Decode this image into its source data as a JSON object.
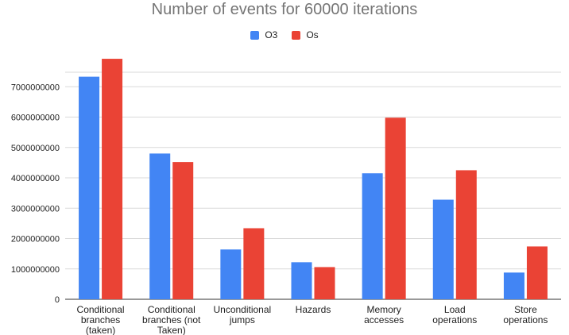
{
  "chart_data": {
    "type": "bar",
    "title": "Number of events for 60000 iterations",
    "categories": [
      [
        "Conditional",
        "branches",
        "(taken)"
      ],
      [
        "Conditional",
        "branches (not",
        "Taken)"
      ],
      [
        "Unconditional",
        "jumps"
      ],
      [
        "Hazards"
      ],
      [
        "Memory",
        "accesses"
      ],
      [
        "Load",
        "operations"
      ],
      [
        "Store",
        "operations"
      ]
    ],
    "series": [
      {
        "name": "O3",
        "color": "#4285F4",
        "values": [
          7330000000,
          4800000000,
          1640000000,
          1220000000,
          4150000000,
          3280000000,
          880000000
        ]
      },
      {
        "name": "Os",
        "color": "#EA4335",
        "values": [
          7920000000,
          4520000000,
          2340000000,
          1060000000,
          5980000000,
          4250000000,
          1740000000
        ]
      }
    ],
    "ylim": [
      0,
      8000000000
    ],
    "yticks": [
      0,
      1000000000,
      2000000000,
      3000000000,
      4000000000,
      5000000000,
      6000000000,
      7000000000
    ],
    "xlabel": "",
    "ylabel": "",
    "legend_position": "top-center",
    "grid": true
  }
}
